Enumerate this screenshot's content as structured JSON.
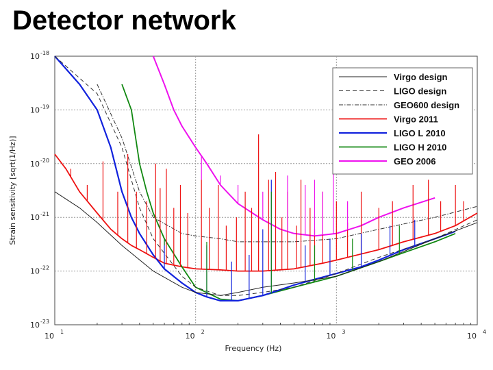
{
  "slide": {
    "title": "Detector network"
  },
  "chart_data": {
    "type": "line",
    "title": "",
    "xlabel": "Frequency (Hz)",
    "ylabel": "Strain sensitivity [sqrt(1/Hz)]",
    "xscale": "log",
    "yscale": "log",
    "xlim": [
      10,
      10000
    ],
    "ylim": [
      1e-23,
      1e-18
    ],
    "x_ticks": [
      {
        "value": 10,
        "base": "10",
        "exp": "1"
      },
      {
        "value": 100,
        "base": "10",
        "exp": "2"
      },
      {
        "value": 1000,
        "base": "10",
        "exp": "3"
      },
      {
        "value": 10000,
        "base": "10",
        "exp": "4"
      }
    ],
    "y_ticks": [
      {
        "value": 1e-23,
        "base": "10",
        "exp": "-23"
      },
      {
        "value": 1e-22,
        "base": "10",
        "exp": "-22"
      },
      {
        "value": 1e-21,
        "base": "10",
        "exp": "-21"
      },
      {
        "value": 1e-20,
        "base": "10",
        "exp": "-20"
      },
      {
        "value": 1e-19,
        "base": "10",
        "exp": "-19"
      },
      {
        "value": 1e-18,
        "base": "10",
        "exp": "-18"
      }
    ],
    "grid": true,
    "legend_position": "top-right",
    "series": [
      {
        "name": "Virgo design",
        "color": "#222222",
        "dash": "solid",
        "width": 1,
        "x": [
          10,
          15,
          20,
          30,
          50,
          80,
          100,
          150,
          200,
          300,
          500,
          1000,
          2000,
          5000,
          10000
        ],
        "y": [
          3e-21,
          1.5e-21,
          8e-22,
          3e-22,
          1e-22,
          5e-23,
          4e-23,
          3.5e-23,
          4e-23,
          5e-23,
          6e-23,
          8e-23,
          1.5e-22,
          4e-22,
          8e-22
        ]
      },
      {
        "name": "LIGO design",
        "color": "#333333",
        "dash": "6,4",
        "width": 1,
        "x": [
          10,
          20,
          30,
          40,
          50,
          80,
          100,
          150,
          200,
          300,
          500,
          1000,
          2000,
          5000,
          10000
        ],
        "y": [
          1e-18,
          2e-19,
          2e-20,
          1.5e-21,
          4e-22,
          8e-23,
          5e-23,
          3.5e-23,
          3.5e-23,
          4e-23,
          5e-23,
          9e-23,
          1.8e-22,
          4e-22,
          9e-22
        ]
      },
      {
        "name": "GEO600 design",
        "color": "#333333",
        "dash": "6,2,1.5,2",
        "width": 1,
        "x": [
          20,
          30,
          40,
          50,
          80,
          100,
          150,
          200,
          300,
          500,
          1000,
          2000,
          5000,
          10000
        ],
        "y": [
          3e-19,
          3e-20,
          3e-21,
          1e-21,
          5e-22,
          4.5e-22,
          4e-22,
          3.5e-22,
          3.5e-22,
          3.5e-22,
          4e-22,
          6e-22,
          1e-21,
          1.6e-21
        ]
      },
      {
        "name": "Virgo 2011",
        "color": "#ee1111",
        "dash": "solid",
        "width": 1.8,
        "x": [
          10,
          12,
          15,
          20,
          25,
          30,
          35,
          40,
          50,
          60,
          80,
          100,
          150,
          200,
          300,
          500,
          800,
          1000,
          2000,
          3000,
          5000,
          7000,
          10000
        ],
        "y": [
          1.5e-20,
          8e-21,
          3e-21,
          1.2e-21,
          6e-22,
          4e-22,
          3e-22,
          2.5e-22,
          1.8e-22,
          1.4e-22,
          1.2e-22,
          1.1e-22,
          1.05e-22,
          1e-22,
          1e-22,
          1.1e-22,
          1.4e-22,
          1.6e-22,
          2.5e-22,
          3.5e-22,
          5e-22,
          7e-22,
          1.2e-21
        ]
      },
      {
        "name": "LIGO L 2010",
        "color": "#1122dd",
        "dash": "solid",
        "width": 2.2,
        "x": [
          10,
          15,
          20,
          25,
          30,
          35,
          40,
          50,
          60,
          80,
          100,
          120,
          150,
          200,
          300,
          400,
          500,
          700,
          1000,
          1500,
          2000,
          3000,
          5000,
          7000
        ],
        "y": [
          1e-18,
          3e-19,
          1e-19,
          2e-20,
          3e-21,
          1e-21,
          5e-22,
          2e-22,
          1.1e-22,
          6e-23,
          4e-23,
          3.3e-23,
          2.8e-23,
          2.8e-23,
          3.5e-23,
          4.5e-23,
          5.5e-23,
          7e-23,
          9e-23,
          1.2e-22,
          1.6e-22,
          2.5e-22,
          4e-22,
          5.5e-22
        ]
      },
      {
        "name": "LIGO H 2010",
        "color": "#118811",
        "dash": "solid",
        "width": 1.8,
        "x": [
          30,
          35,
          40,
          45,
          50,
          60,
          80,
          100,
          150,
          200,
          300,
          500,
          1000,
          2000,
          3000,
          5000,
          7000
        ],
        "y": [
          3e-19,
          1e-19,
          1e-20,
          3e-21,
          1.2e-21,
          4e-22,
          1.2e-22,
          5e-23,
          3e-23,
          2.8e-23,
          3.5e-23,
          5e-23,
          8e-23,
          1.5e-22,
          2.2e-22,
          3.5e-22,
          5e-22
        ]
      },
      {
        "name": "GEO 2006",
        "color": "#ee11ee",
        "dash": "solid",
        "width": 2,
        "x": [
          50,
          60,
          70,
          80,
          100,
          120,
          150,
          200,
          300,
          400,
          500,
          700,
          1000,
          1500,
          2000,
          3000,
          5000
        ],
        "y": [
          1e-18,
          3e-19,
          1e-19,
          5e-20,
          2e-20,
          1e-20,
          4e-21,
          1.8e-21,
          9e-22,
          6e-22,
          5e-22,
          4.5e-22,
          5e-22,
          7e-22,
          1e-21,
          1.5e-21,
          2.3e-21
        ]
      }
    ],
    "peaks": [
      {
        "series": "Virgo 2011",
        "x": [
          13,
          17,
          22,
          28,
          33,
          38,
          45,
          52,
          56,
          62,
          70,
          78,
          88,
          110,
          125,
          145,
          165,
          195,
          225,
          250,
          280,
          330,
          370,
          410,
          450,
          520,
          560,
          650,
          700,
          800,
          1000,
          1200,
          1500,
          2000,
          2500,
          3500,
          4500,
          5500,
          7000,
          8000
        ],
        "y": [
          8e-21,
          4e-21,
          1.1e-20,
          3e-21,
          1.5e-20,
          3e-21,
          2e-21,
          1e-20,
          3.5e-21,
          8e-21,
          1.5e-21,
          4e-21,
          1.2e-21,
          5e-21,
          1.5e-21,
          4e-21,
          7e-22,
          1e-21,
          3e-21,
          1.5e-21,
          3.5e-20,
          5e-21,
          7e-21,
          1e-21,
          3e-21,
          7e-22,
          5e-21,
          1.5e-21,
          6e-22,
          3e-21,
          2e-21,
          8e-22,
          3e-21,
          1.5e-21,
          2e-21,
          4e-21,
          5e-21,
          2e-21,
          4e-21,
          2e-21
        ]
      },
      {
        "series": "LIGO L 2010",
        "x": [
          60,
          120,
          180,
          240,
          300,
          345,
          600,
          900,
          1500,
          2400,
          3600
        ],
        "y": [
          4e-22,
          3e-22,
          1.5e-22,
          2e-22,
          6e-22,
          5e-21,
          3e-22,
          4e-22,
          5e-22,
          7e-22,
          9e-22
        ]
      },
      {
        "series": "LIGO H 2010",
        "x": [
          60,
          120,
          345,
          700,
          1300,
          2800
        ],
        "y": [
          3e-22,
          3.5e-22,
          3e-21,
          3e-22,
          4e-22,
          7e-22
        ]
      },
      {
        "series": "GEO 2006",
        "x": [
          110,
          150,
          200,
          300,
          450,
          600,
          700,
          800,
          950,
          1200
        ],
        "y": [
          5e-21,
          6e-21,
          4e-21,
          3e-21,
          6e-21,
          4e-21,
          5e-21,
          3e-21,
          8e-21,
          2e-21
        ]
      }
    ]
  }
}
